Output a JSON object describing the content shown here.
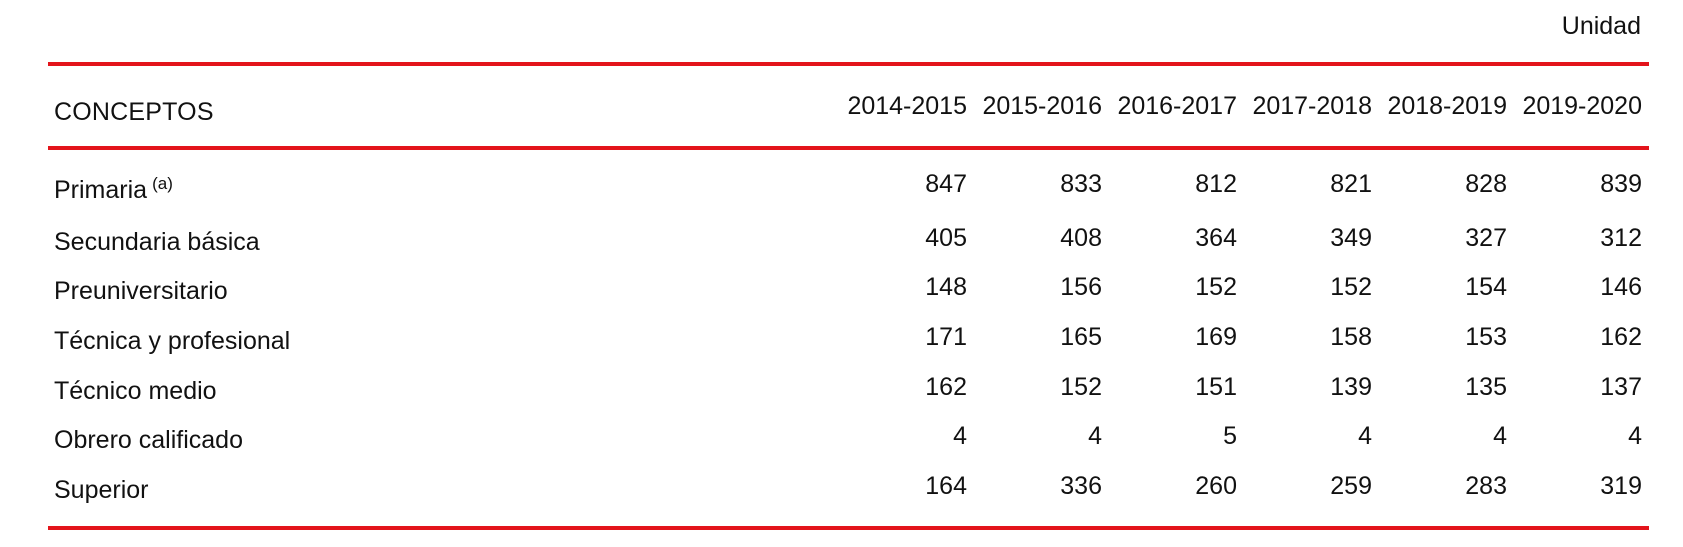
{
  "unit_label": "Unidad",
  "colors": {
    "rule": "#e3141b",
    "text": "#111111"
  },
  "table": {
    "header": "CONCEPTOS",
    "years": [
      "2014-2015",
      "2015-2016",
      "2016-2017",
      "2017-2018",
      "2018-2019",
      "2019-2020"
    ],
    "rows": [
      {
        "label": "Primaria",
        "note": "(a)",
        "values": [
          "847",
          "833",
          "812",
          "821",
          "828",
          "839"
        ]
      },
      {
        "label": "Secundaria básica",
        "values": [
          "405",
          "408",
          "364",
          "349",
          "327",
          "312"
        ]
      },
      {
        "label": "Preuniversitario",
        "values": [
          "148",
          "156",
          "152",
          "152",
          "154",
          "146"
        ]
      },
      {
        "label": "Técnica y profesional",
        "values": [
          "171",
          "165",
          "169",
          "158",
          "153",
          "162"
        ]
      },
      {
        "label": "Técnico medio",
        "values": [
          "162",
          "152",
          "151",
          "139",
          "135",
          "137"
        ]
      },
      {
        "label": "Obrero calificado",
        "values": [
          "4",
          "4",
          "5",
          "4",
          "4",
          "4"
        ]
      },
      {
        "label": "Superior",
        "values": [
          "164",
          "336",
          "260",
          "259",
          "283",
          "319"
        ]
      }
    ]
  }
}
